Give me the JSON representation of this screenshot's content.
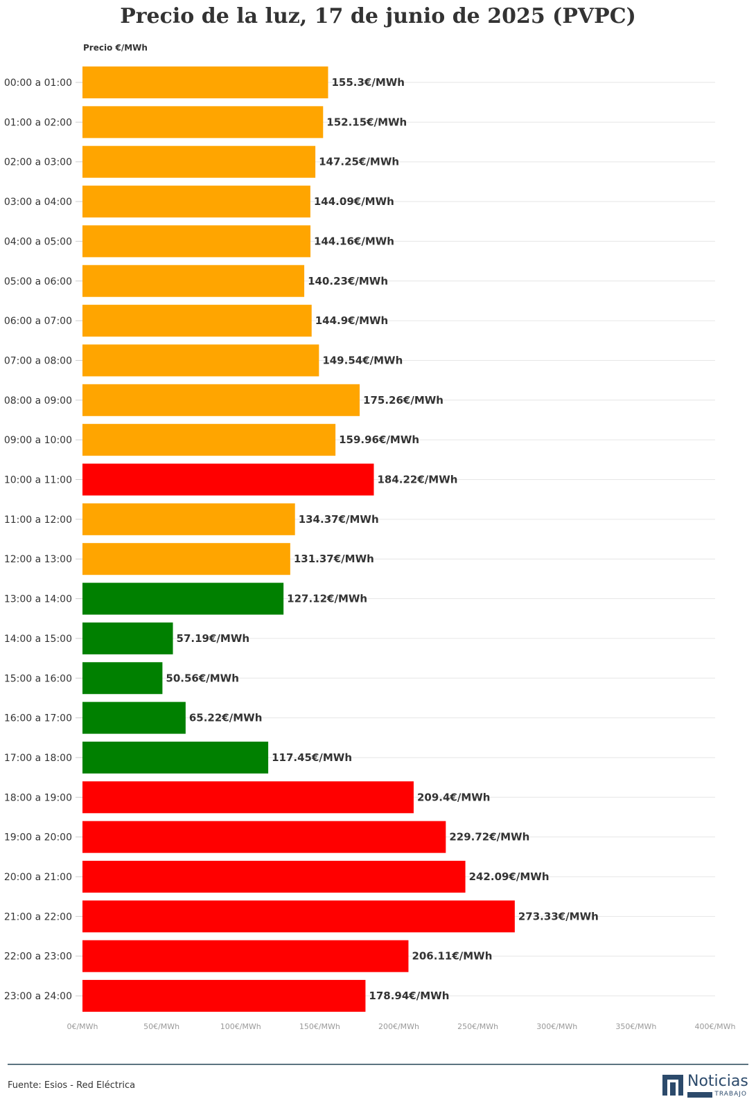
{
  "chart_data": {
    "type": "bar",
    "orientation": "horizontal",
    "title": "Precio de la luz, 17 de junio de 2025 (PVPC)",
    "ylabel": "Precio €/MWh",
    "xlim": [
      0,
      400
    ],
    "x_ticks": [
      0,
      50,
      100,
      150,
      200,
      250,
      300,
      350,
      400
    ],
    "x_tick_labels": [
      "0€/MWh",
      "50€/MWh",
      "100€/MWh",
      "150€/MWh",
      "200€/MWh",
      "250€/MWh",
      "300€/MWh",
      "350€/MWh",
      "400€/MWh"
    ],
    "grid": true,
    "legend": "none",
    "categories": [
      "00:00 a 01:00",
      "01:00 a 02:00",
      "02:00 a 03:00",
      "03:00 a 04:00",
      "04:00 a 05:00",
      "05:00 a 06:00",
      "06:00 a 07:00",
      "07:00 a 08:00",
      "08:00 a 09:00",
      "09:00 a 10:00",
      "10:00 a 11:00",
      "11:00 a 12:00",
      "12:00 a 13:00",
      "13:00 a 14:00",
      "14:00 a 15:00",
      "15:00 a 16:00",
      "16:00 a 17:00",
      "17:00 a 18:00",
      "18:00 a 19:00",
      "19:00 a 20:00",
      "20:00 a 21:00",
      "21:00 a 22:00",
      "22:00 a 23:00",
      "23:00 a 24:00"
    ],
    "values": [
      155.3,
      152.15,
      147.25,
      144.09,
      144.16,
      140.23,
      144.9,
      149.54,
      175.26,
      159.96,
      184.22,
      134.37,
      131.37,
      127.12,
      57.19,
      50.56,
      65.22,
      117.45,
      209.4,
      229.72,
      242.09,
      273.33,
      206.11,
      178.94
    ],
    "data_labels": [
      "155.3€/MWh",
      "152.15€/MWh",
      "147.25€/MWh",
      "144.09€/MWh",
      "144.16€/MWh",
      "140.23€/MWh",
      "144.9€/MWh",
      "149.54€/MWh",
      "175.26€/MWh",
      "159.96€/MWh",
      "184.22€/MWh",
      "134.37€/MWh",
      "131.37€/MWh",
      "127.12€/MWh",
      "57.19€/MWh",
      "50.56€/MWh",
      "65.22€/MWh",
      "117.45€/MWh",
      "209.4€/MWh",
      "229.72€/MWh",
      "242.09€/MWh",
      "273.33€/MWh",
      "206.11€/MWh",
      "178.94€/MWh"
    ],
    "bar_levels": [
      "mid",
      "mid",
      "mid",
      "mid",
      "mid",
      "mid",
      "mid",
      "mid",
      "mid",
      "mid",
      "high",
      "mid",
      "mid",
      "low",
      "low",
      "low",
      "low",
      "low",
      "high",
      "high",
      "high",
      "high",
      "high",
      "high"
    ],
    "level_colors": {
      "low": "#008000",
      "mid": "#FFA500",
      "high": "#FF0000"
    }
  },
  "footer": {
    "source": "Fuente: Esios - Red Eléctrica"
  },
  "logo": {
    "name": "Noticias",
    "subtitle": "TRABAJO"
  }
}
